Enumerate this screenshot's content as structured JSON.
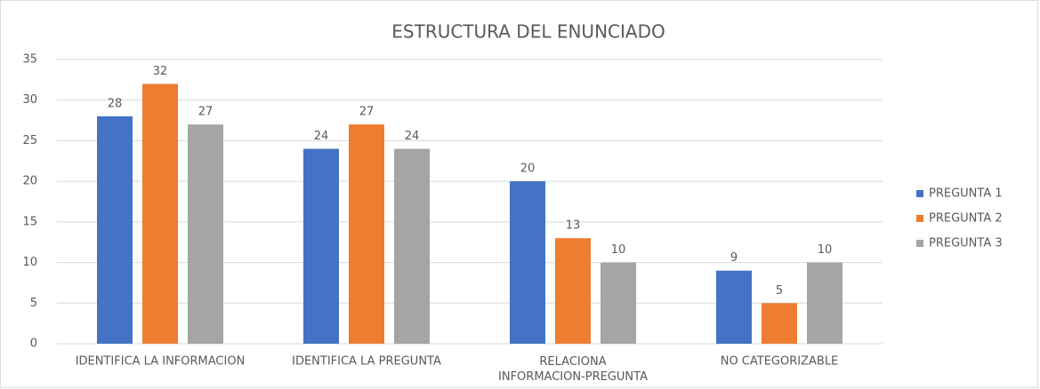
{
  "chart_data": {
    "type": "bar",
    "title": "ESTRUCTURA DEL ENUNCIADO",
    "categories": [
      "IDENTIFICA LA INFORMACION",
      "IDENTIFICA LA PREGUNTA",
      "RELACIONA INFORMACION-PREGUNTA",
      "NO CATEGORIZABLE"
    ],
    "series": [
      {
        "name": "PREGUNTA 1",
        "color": "#4472c4",
        "values": [
          28,
          24,
          20,
          9
        ]
      },
      {
        "name": "PREGUNTA 2",
        "color": "#ed7d31",
        "values": [
          32,
          27,
          13,
          5
        ]
      },
      {
        "name": "PREGUNTA 3",
        "color": "#a5a5a5",
        "values": [
          27,
          24,
          10,
          10
        ]
      }
    ],
    "ylim": [
      0,
      35
    ],
    "yticks": [
      0,
      5,
      10,
      15,
      20,
      25,
      30,
      35
    ],
    "grid": true,
    "legend": "right"
  }
}
